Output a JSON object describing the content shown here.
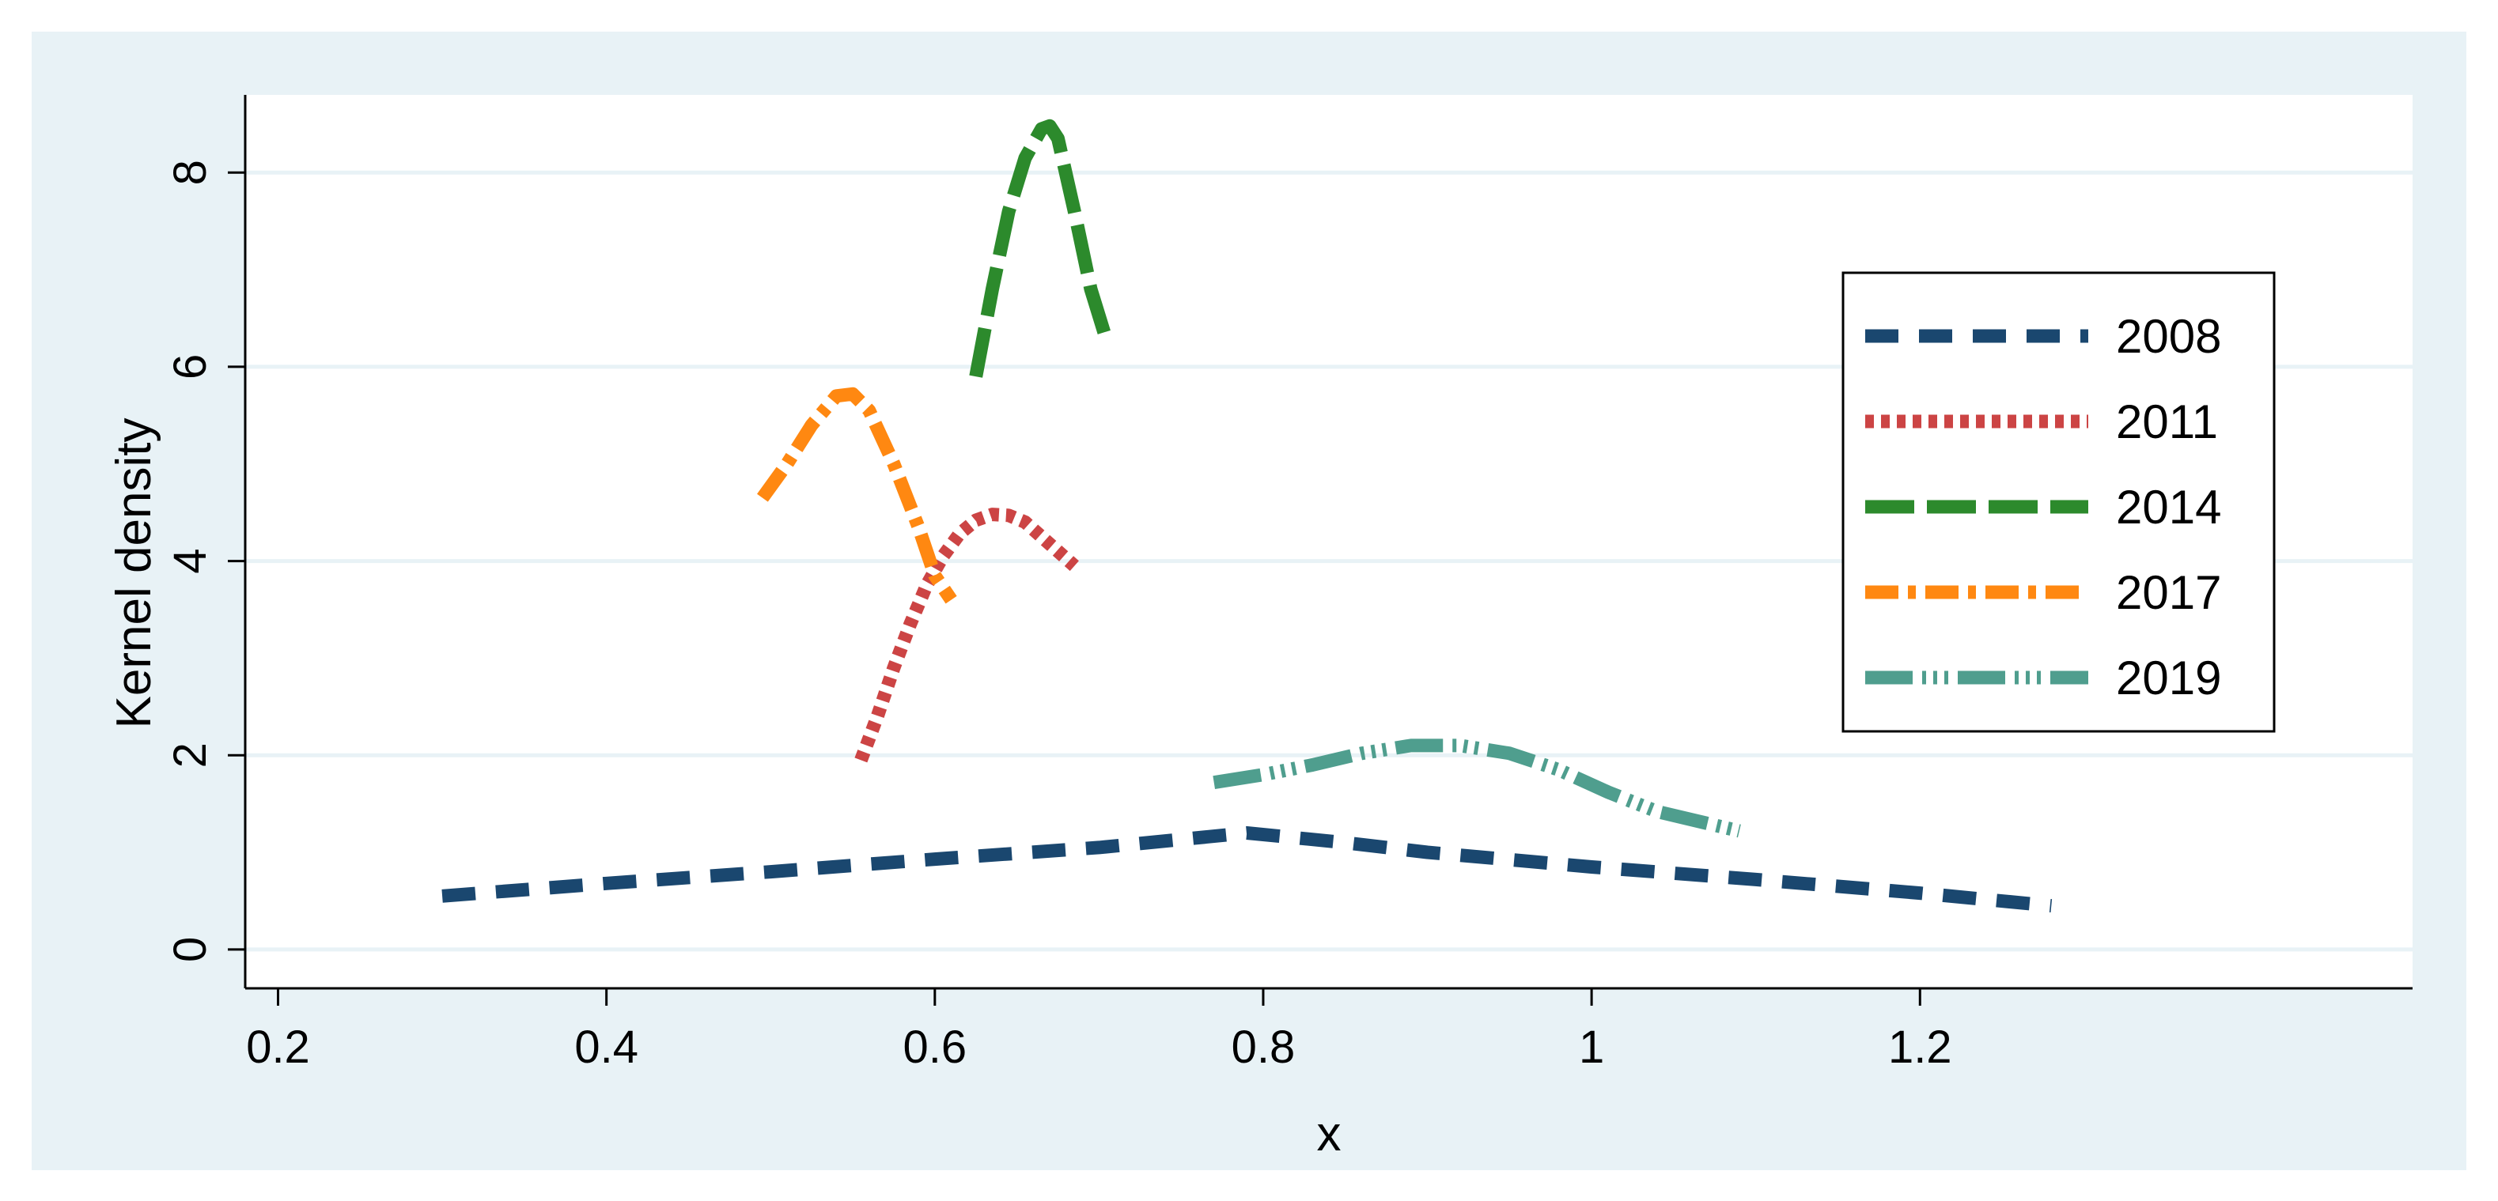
{
  "chart_data": {
    "type": "line",
    "title": "",
    "xlabel": "x",
    "ylabel": "Kernel density",
    "xlim": [
      0.18,
      1.5
    ],
    "ylim": [
      -0.4,
      8.8
    ],
    "xticks": [
      0.2,
      0.4,
      0.6,
      0.8,
      1,
      1.2
    ],
    "xtick_labels": [
      "0.2",
      "0.4",
      "0.6",
      "0.8",
      "1",
      "1.2"
    ],
    "yticks": [
      0,
      2,
      4,
      6,
      8
    ],
    "ytick_labels": [
      "0",
      "2",
      "4",
      "6",
      "8"
    ],
    "grid": "horizontal",
    "legend_position": "right",
    "colors": {
      "background": "#e8f2f6",
      "plot": "#ffffff",
      "grid": "#e8f2f6"
    },
    "series": [
      {
        "name": "2008",
        "color": "#1a476f",
        "dash": "dash",
        "x": [
          0.3,
          0.4,
          0.5,
          0.6,
          0.7,
          0.79,
          0.85,
          0.9,
          1.0,
          1.1,
          1.2,
          1.28
        ],
        "y": [
          0.55,
          0.68,
          0.8,
          0.93,
          1.05,
          1.2,
          1.1,
          1.0,
          0.85,
          0.72,
          0.58,
          0.45
        ]
      },
      {
        "name": "2011",
        "color": "#cc4444",
        "dash": "dot",
        "x": [
          0.555,
          0.565,
          0.575,
          0.585,
          0.595,
          0.605,
          0.615,
          0.625,
          0.635,
          0.645,
          0.655,
          0.665,
          0.675,
          0.685
        ],
        "y": [
          1.95,
          2.4,
          2.9,
          3.35,
          3.75,
          4.05,
          4.28,
          4.42,
          4.48,
          4.47,
          4.4,
          4.25,
          4.1,
          3.95
        ]
      },
      {
        "name": "2014",
        "color": "#2c8a2c",
        "dash": "longdash",
        "x": [
          0.625,
          0.635,
          0.645,
          0.655,
          0.665,
          0.67,
          0.675,
          0.685,
          0.695,
          0.705
        ],
        "y": [
          5.9,
          6.8,
          7.6,
          8.15,
          8.45,
          8.48,
          8.35,
          7.6,
          6.8,
          6.25
        ]
      },
      {
        "name": "2017",
        "color": "#ff8811",
        "dash": "dashdot",
        "x": [
          0.495,
          0.51,
          0.525,
          0.54,
          0.55,
          0.56,
          0.575,
          0.59,
          0.6,
          0.61
        ],
        "y": [
          4.65,
          5.0,
          5.4,
          5.7,
          5.72,
          5.55,
          5.0,
          4.35,
          3.85,
          3.6
        ]
      },
      {
        "name": "2019",
        "color": "#4f9e8e",
        "dash": "longdashdot",
        "x": [
          0.77,
          0.8,
          0.83,
          0.86,
          0.89,
          0.92,
          0.95,
          0.98,
          1.01,
          1.04,
          1.07,
          1.09
        ],
        "y": [
          1.72,
          1.8,
          1.9,
          2.02,
          2.1,
          2.1,
          2.02,
          1.85,
          1.62,
          1.42,
          1.3,
          1.22
        ]
      }
    ]
  }
}
